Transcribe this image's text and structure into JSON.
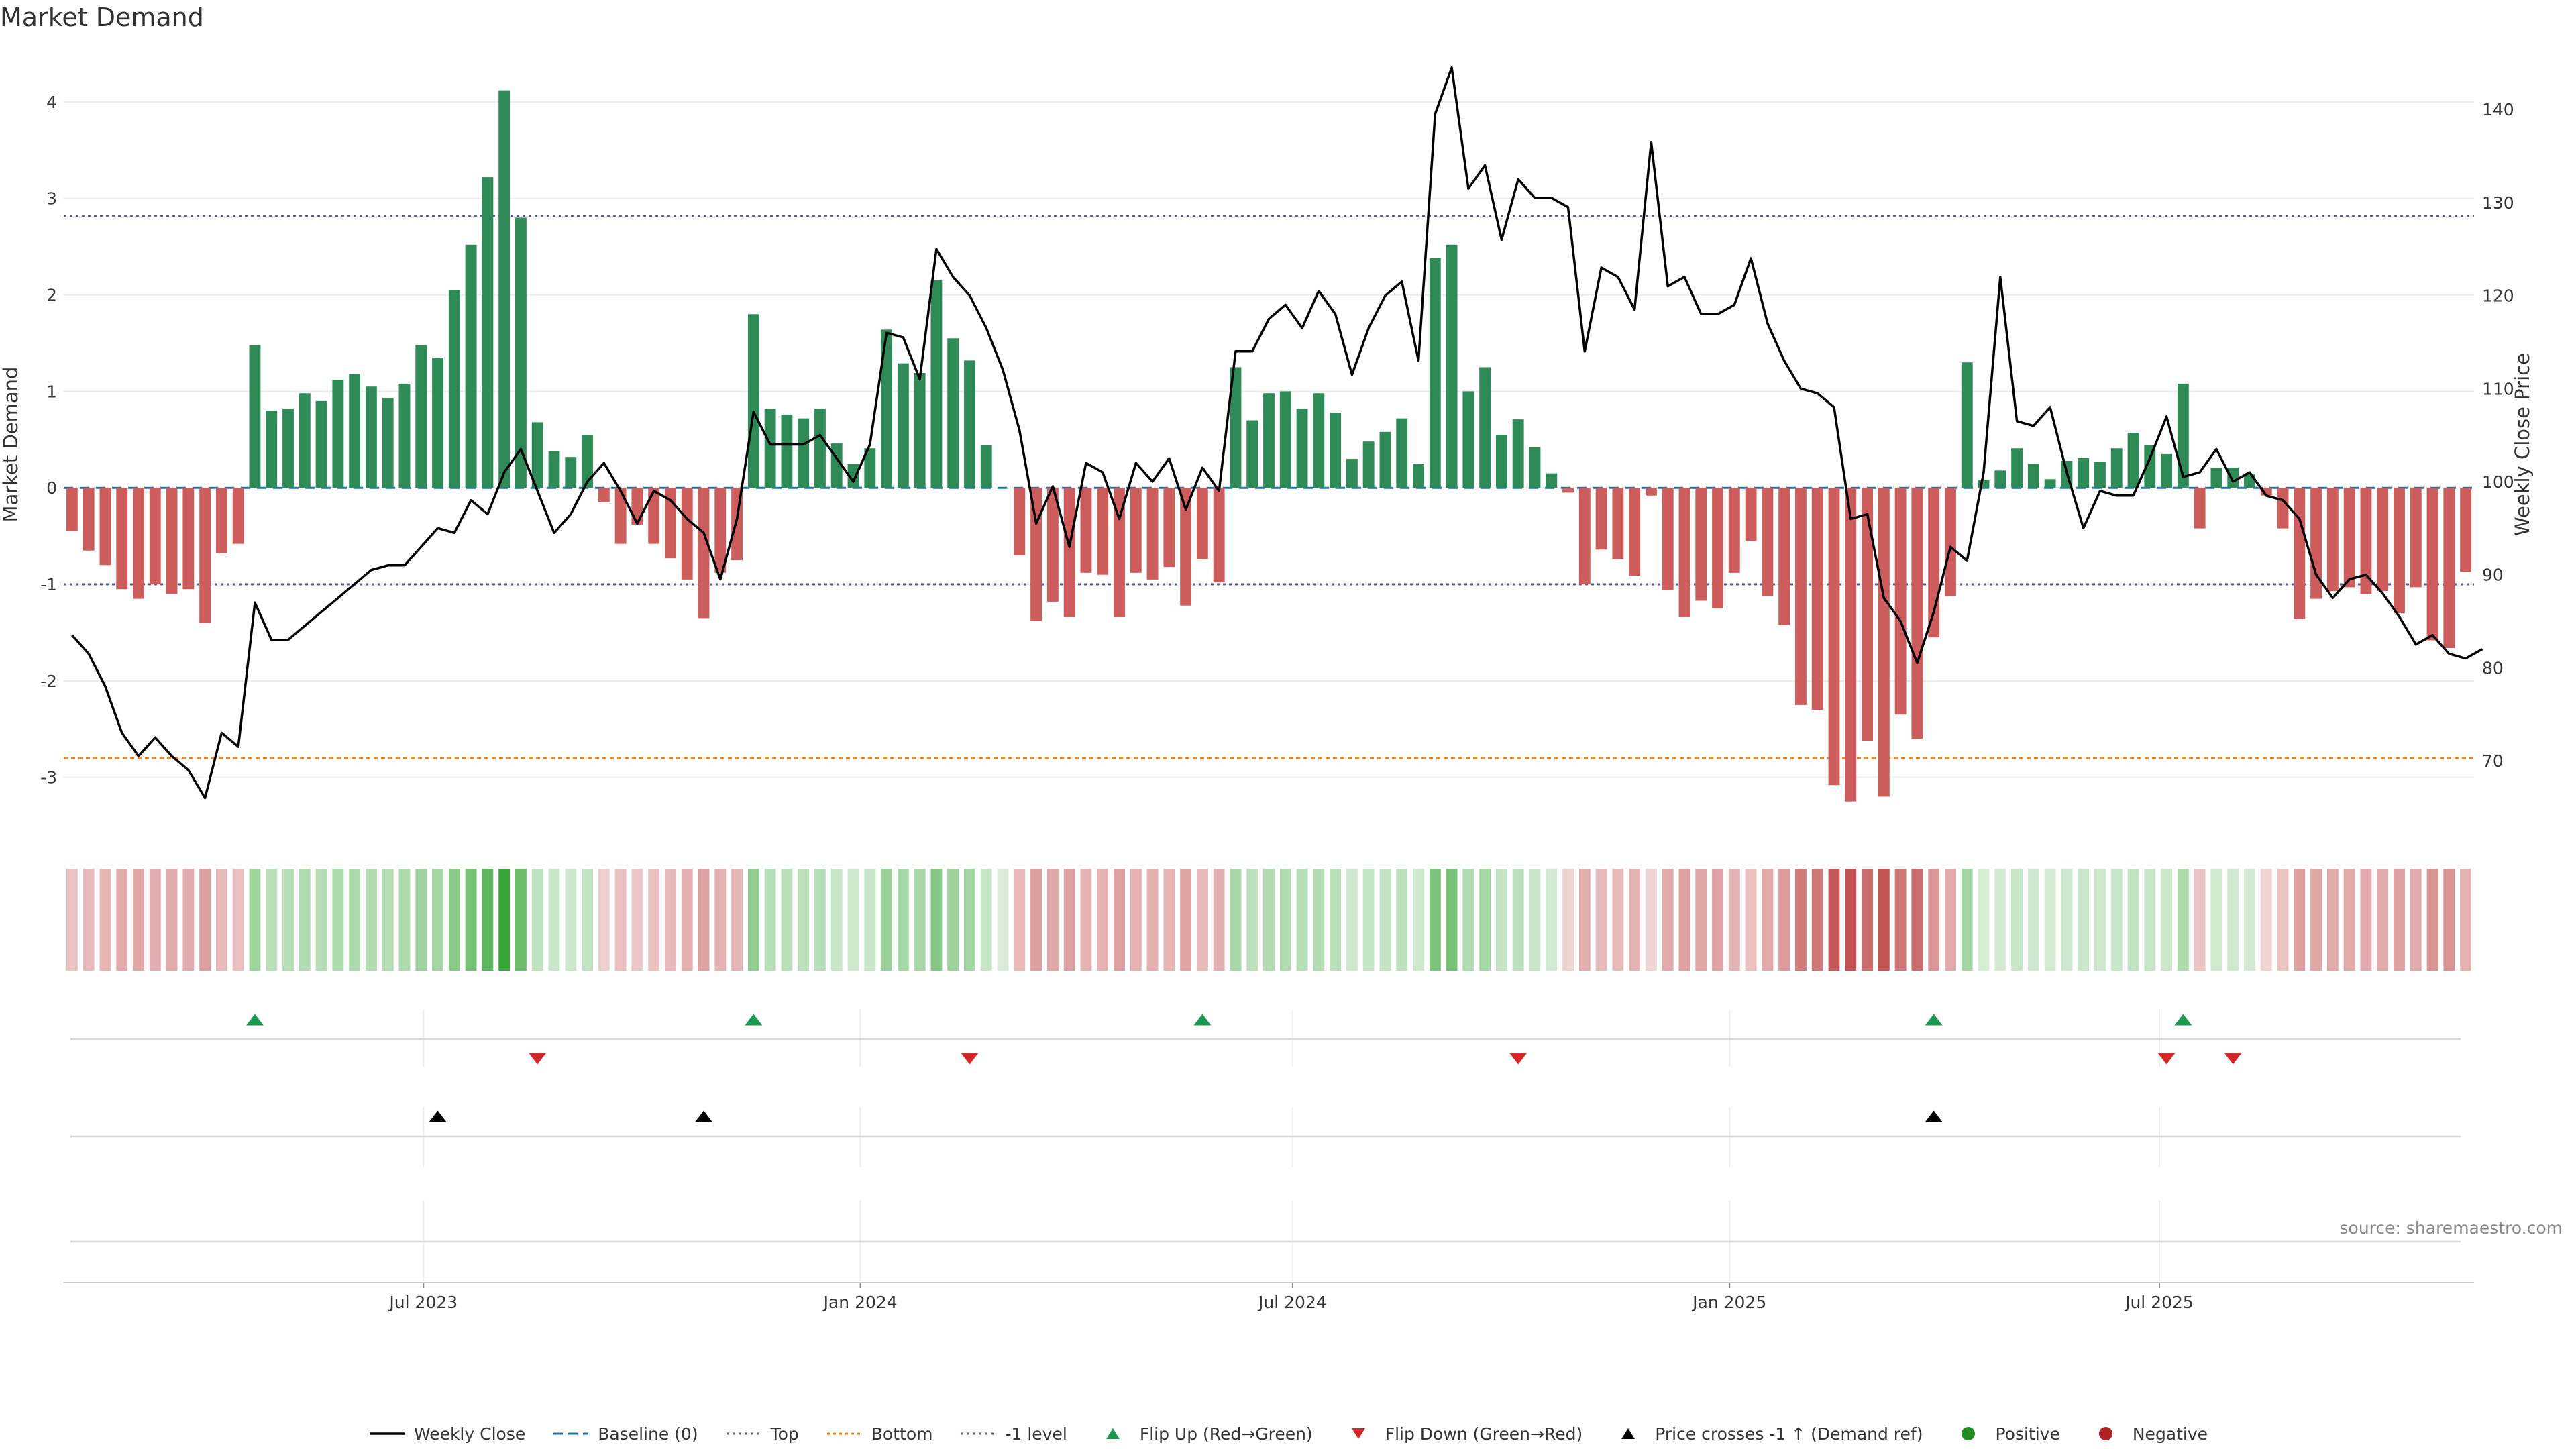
{
  "title": "Market Demand",
  "source": "source: sharemaestro.com",
  "colors": {
    "positive": "#2e8b57",
    "negative": "#cd5c5c",
    "price": "#000000",
    "baseline": "#1f77b4",
    "top": "#5a5a8c",
    "bottom": "#ff7f0e",
    "level": "#5a5a8c",
    "flip_up": "#1a9850",
    "flip_down": "#d62728",
    "cross": "#000000",
    "dot_pos": "#228b22",
    "dot_neg": "#b22222"
  },
  "legend": [
    {
      "label": "Weekly Close",
      "kind": "solid",
      "color": "#000000"
    },
    {
      "label": "Baseline (0)",
      "kind": "dash",
      "color": "#1f77b4"
    },
    {
      "label": "Top",
      "kind": "dot",
      "color": "#5a5a8c"
    },
    {
      "label": "Bottom",
      "kind": "dot",
      "color": "#ff7f0e"
    },
    {
      "label": "-1 level",
      "kind": "dot",
      "color": "#5a5a8c"
    },
    {
      "label": "Flip Up (Red→Green)",
      "kind": "tri-up",
      "color": "#1a9850"
    },
    {
      "label": "Flip Down (Green→Red)",
      "kind": "tri-down",
      "color": "#d62728"
    },
    {
      "label": "Price crosses -1 ↑ (Demand ref)",
      "kind": "tri-up",
      "color": "#000000"
    },
    {
      "label": "Positive",
      "kind": "circle",
      "color": "#228b22"
    },
    {
      "label": "Negative",
      "kind": "circle",
      "color": "#b22222"
    }
  ],
  "chart_data": {
    "type": "bar",
    "title": "Market Demand",
    "ylabel_left": "Market Demand",
    "ylabel_right": "Weekly Close Price",
    "ylim_left": [
      -3.6,
      4.5
    ],
    "ylim_right": [
      62,
      146
    ],
    "yticks_left": [
      "-3",
      "-2",
      "-1",
      "0",
      "1",
      "2",
      "3",
      "4"
    ],
    "yticks_right": [
      "70",
      "80",
      "90",
      "100",
      "110",
      "120",
      "130",
      "140"
    ],
    "x_start": "2023-02-03",
    "x_interval": "weekly",
    "x_tick_labels": [
      {
        "label": "Jul 2023",
        "date": "2023-07-01"
      },
      {
        "label": "Jan 2024",
        "date": "2024-01-01"
      },
      {
        "label": "Jul 2024",
        "date": "2024-07-01"
      },
      {
        "label": "Jan 2025",
        "date": "2025-01-01"
      },
      {
        "label": "Jul 2025",
        "date": "2025-07-01"
      }
    ],
    "reference_lines": {
      "baseline": 0,
      "top": 2.82,
      "bottom": -2.8,
      "minus_one_level": -1
    },
    "demand": [
      -0.45,
      -0.65,
      -0.8,
      -1.05,
      -1.15,
      -1.0,
      -1.1,
      -1.05,
      -1.4,
      -0.68,
      -0.58,
      1.48,
      0.8,
      0.82,
      0.98,
      0.9,
      1.12,
      1.18,
      1.05,
      0.93,
      1.08,
      1.48,
      1.35,
      2.05,
      2.52,
      3.22,
      4.12,
      2.8,
      0.68,
      0.38,
      0.32,
      0.55,
      -0.15,
      -0.58,
      -0.38,
      -0.58,
      -0.73,
      -0.95,
      -1.35,
      -0.88,
      -0.75,
      1.8,
      0.82,
      0.76,
      0.72,
      0.82,
      0.46,
      0.25,
      0.41,
      1.64,
      1.29,
      1.19,
      2.15,
      1.55,
      1.32,
      0.44,
      0,
      -0.7,
      -1.38,
      -1.18,
      -1.34,
      -0.88,
      -0.9,
      -1.34,
      -0.88,
      -0.95,
      -0.82,
      -1.22,
      -0.74,
      -0.98,
      1.25,
      0.7,
      0.98,
      1.0,
      0.82,
      0.98,
      0.78,
      0.3,
      0.48,
      0.58,
      0.72,
      0.25,
      2.38,
      2.52,
      1.0,
      1.25,
      0.55,
      0.71,
      0.42,
      0.15,
      -0.05,
      -1.0,
      -0.64,
      -0.74,
      -0.91,
      -0.08,
      -1.06,
      -1.34,
      -1.17,
      -1.25,
      -0.88,
      -0.55,
      -1.12,
      -1.42,
      -2.25,
      -2.3,
      -3.08,
      -3.25,
      -2.62,
      -3.2,
      -2.35,
      -2.6,
      -1.55,
      -1.12,
      1.3,
      0.08,
      0.18,
      0.41,
      0.25,
      0.09,
      0.28,
      0.31,
      0.27,
      0.41,
      0.57,
      0.44,
      0.35,
      1.08,
      -0.42,
      0.21,
      0.21,
      0.14,
      -0.08,
      -0.42,
      -1.36,
      -1.15,
      -1.07,
      -1.03,
      -1.1,
      -1.07,
      -1.3,
      -1.03,
      -1.58,
      -1.66,
      -0.87
    ],
    "weekly_close": [
      83.5,
      81.5,
      78,
      73,
      70.5,
      72.5,
      70.5,
      69,
      66,
      73,
      71.5,
      87,
      83,
      83,
      84.5,
      86,
      87.5,
      89,
      90.5,
      91,
      91,
      93,
      95,
      94.5,
      98,
      96.5,
      101,
      103.5,
      99,
      94.5,
      96.5,
      100,
      102,
      99,
      95.5,
      99,
      98,
      96,
      94.5,
      89.5,
      96,
      107.5,
      104,
      104,
      104,
      105,
      102.5,
      100,
      104,
      116,
      115.5,
      111,
      125,
      122,
      120,
      116.5,
      112,
      105.5,
      95.5,
      99.5,
      93,
      102,
      101,
      96,
      102,
      100,
      102.5,
      97,
      101.5,
      99,
      114,
      114,
      117.5,
      119,
      116.5,
      120.5,
      118,
      111.5,
      116.5,
      120,
      121.5,
      113,
      139.5,
      144.5,
      131.5,
      134,
      126,
      132.5,
      130.5,
      130.5,
      129.5,
      114,
      123,
      122,
      118.5,
      136.5,
      121,
      122,
      118,
      118,
      119,
      124,
      117,
      113,
      110,
      109.5,
      108,
      96,
      96.5,
      87.5,
      85,
      80.5,
      86,
      93,
      91.5,
      101,
      122,
      106.5,
      106,
      108,
      101,
      95,
      99,
      98.5,
      98.5,
      102.5,
      107,
      100.5,
      101,
      103.5,
      100,
      101,
      98.5,
      98,
      96,
      90,
      87.5,
      89.5,
      90,
      88,
      85.5,
      82.5,
      83.5,
      81.5,
      81,
      82
    ]
  },
  "signals": {
    "flip_up_dates": [
      "2023-04-21",
      "2023-11-17",
      "2024-05-24",
      "2025-03-28",
      "2025-07-11"
    ],
    "flip_down_dates": [
      "2023-08-18",
      "2024-02-16",
      "2024-10-04",
      "2025-07-04",
      "2025-08-01"
    ],
    "price_cross_dates": [
      "2023-07-07",
      "2023-10-27",
      "2025-03-28"
    ]
  }
}
